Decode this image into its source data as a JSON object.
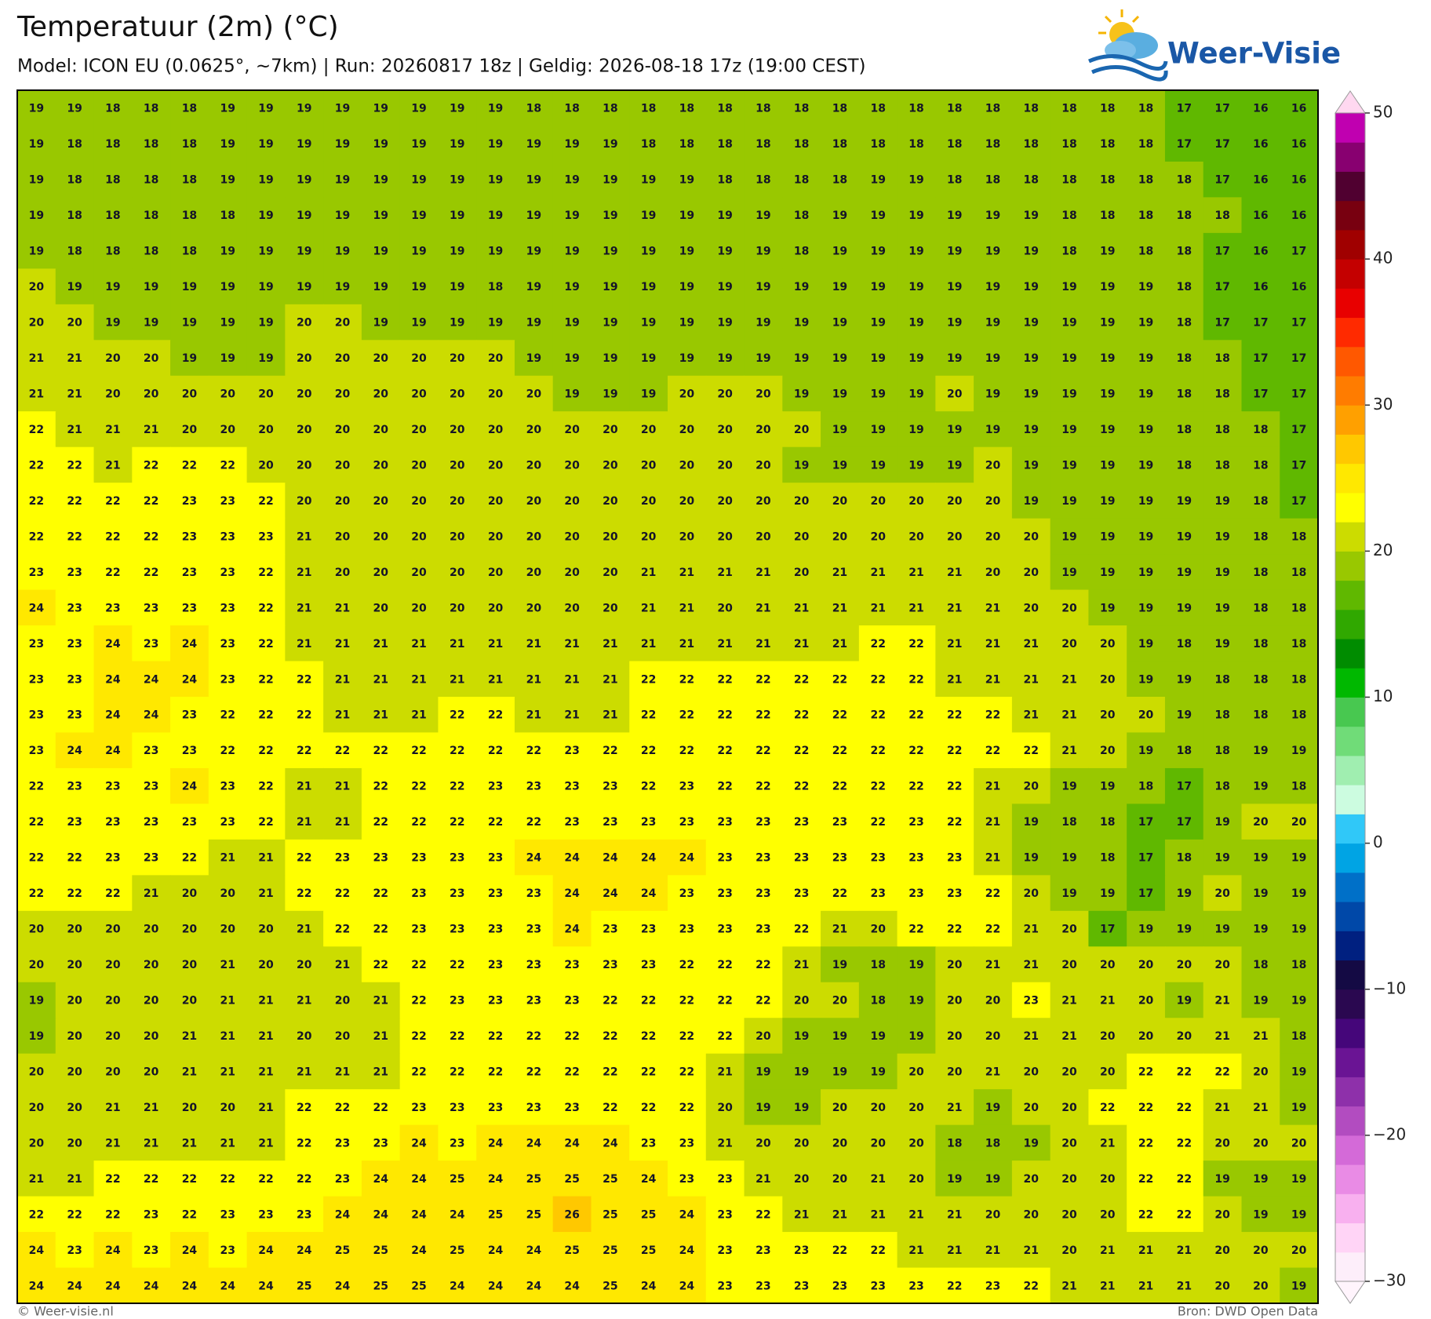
{
  "title": "Temperatuur (2m) (°C)",
  "subtitle": "Model: ICON EU (0.0625°, ~7km)  |  Run: 20260817 18z  |  Geldig: 2026-08-18 17z (19:00 CEST)",
  "logo": "Weer-Visie",
  "footer": {
    "left": "© Weer-visie.nl",
    "right": "Bron: DWD Open Data"
  },
  "grid": {
    "rows": [
      [
        19,
        19,
        18,
        18,
        18,
        19,
        19,
        19,
        19,
        19,
        19,
        19,
        19,
        18,
        18,
        18,
        18,
        18,
        18,
        18,
        18,
        18,
        18,
        18,
        18,
        18,
        18,
        18,
        18,
        18,
        17,
        17,
        16,
        16
      ],
      [
        19,
        18,
        18,
        18,
        18,
        19,
        19,
        19,
        19,
        19,
        19,
        19,
        19,
        19,
        19,
        19,
        18,
        18,
        18,
        18,
        18,
        18,
        18,
        18,
        18,
        18,
        18,
        18,
        18,
        18,
        17,
        17,
        16,
        16
      ],
      [
        19,
        18,
        18,
        18,
        18,
        19,
        19,
        19,
        19,
        19,
        19,
        19,
        19,
        19,
        19,
        19,
        19,
        19,
        18,
        18,
        18,
        18,
        19,
        19,
        18,
        18,
        18,
        18,
        18,
        18,
        18,
        17,
        16,
        16
      ],
      [
        19,
        18,
        18,
        18,
        18,
        18,
        19,
        19,
        19,
        19,
        19,
        19,
        19,
        19,
        19,
        19,
        19,
        19,
        19,
        19,
        18,
        19,
        19,
        19,
        19,
        19,
        19,
        18,
        18,
        18,
        18,
        18,
        16,
        16
      ],
      [
        19,
        18,
        18,
        18,
        18,
        19,
        19,
        19,
        19,
        19,
        19,
        19,
        19,
        19,
        19,
        19,
        19,
        19,
        19,
        19,
        18,
        19,
        19,
        19,
        19,
        19,
        19,
        18,
        19,
        18,
        18,
        17,
        16,
        17
      ],
      [
        20,
        19,
        19,
        19,
        19,
        19,
        19,
        19,
        19,
        19,
        19,
        19,
        18,
        19,
        19,
        19,
        19,
        19,
        19,
        19,
        19,
        19,
        19,
        19,
        19,
        19,
        19,
        19,
        19,
        19,
        18,
        17,
        16,
        16
      ],
      [
        20,
        20,
        19,
        19,
        19,
        19,
        19,
        20,
        20,
        19,
        19,
        19,
        19,
        19,
        19,
        19,
        19,
        19,
        19,
        19,
        19,
        19,
        19,
        19,
        19,
        19,
        19,
        19,
        19,
        19,
        18,
        17,
        17,
        17
      ],
      [
        21,
        21,
        20,
        20,
        19,
        19,
        19,
        20,
        20,
        20,
        20,
        20,
        20,
        19,
        19,
        19,
        19,
        19,
        19,
        19,
        19,
        19,
        19,
        19,
        19,
        19,
        19,
        19,
        19,
        19,
        18,
        18,
        17,
        17
      ],
      [
        21,
        21,
        20,
        20,
        20,
        20,
        20,
        20,
        20,
        20,
        20,
        20,
        20,
        20,
        19,
        19,
        19,
        20,
        20,
        20,
        19,
        19,
        19,
        19,
        20,
        19,
        19,
        19,
        19,
        19,
        18,
        18,
        17,
        17
      ],
      [
        22,
        21,
        21,
        21,
        20,
        20,
        20,
        20,
        20,
        20,
        20,
        20,
        20,
        20,
        20,
        20,
        20,
        20,
        20,
        20,
        20,
        19,
        19,
        19,
        19,
        19,
        19,
        19,
        19,
        19,
        18,
        18,
        18,
        17
      ],
      [
        22,
        22,
        21,
        22,
        22,
        22,
        20,
        20,
        20,
        20,
        20,
        20,
        20,
        20,
        20,
        20,
        20,
        20,
        20,
        20,
        19,
        19,
        19,
        19,
        19,
        20,
        19,
        19,
        19,
        19,
        18,
        18,
        18,
        17
      ],
      [
        22,
        22,
        22,
        22,
        23,
        23,
        22,
        20,
        20,
        20,
        20,
        20,
        20,
        20,
        20,
        20,
        20,
        20,
        20,
        20,
        20,
        20,
        20,
        20,
        20,
        20,
        19,
        19,
        19,
        19,
        19,
        19,
        18,
        17
      ],
      [
        22,
        22,
        22,
        22,
        23,
        23,
        23,
        21,
        20,
        20,
        20,
        20,
        20,
        20,
        20,
        20,
        20,
        20,
        20,
        20,
        20,
        20,
        20,
        20,
        20,
        20,
        20,
        19,
        19,
        19,
        19,
        19,
        18,
        18
      ],
      [
        23,
        23,
        22,
        22,
        23,
        23,
        22,
        21,
        20,
        20,
        20,
        20,
        20,
        20,
        20,
        20,
        21,
        21,
        21,
        21,
        20,
        21,
        21,
        21,
        21,
        20,
        20,
        19,
        19,
        19,
        19,
        19,
        18,
        18
      ],
      [
        24,
        23,
        23,
        23,
        23,
        23,
        22,
        21,
        21,
        20,
        20,
        20,
        20,
        20,
        20,
        20,
        21,
        21,
        20,
        21,
        21,
        21,
        21,
        21,
        21,
        21,
        20,
        20,
        19,
        19,
        19,
        19,
        18,
        18
      ],
      [
        23,
        23,
        24,
        23,
        24,
        23,
        22,
        21,
        21,
        21,
        21,
        21,
        21,
        21,
        21,
        21,
        21,
        21,
        21,
        21,
        21,
        21,
        22,
        22,
        21,
        21,
        21,
        20,
        20,
        19,
        18,
        19,
        18,
        18
      ],
      [
        23,
        23,
        24,
        24,
        24,
        23,
        22,
        22,
        21,
        21,
        21,
        21,
        21,
        21,
        21,
        21,
        22,
        22,
        22,
        22,
        22,
        22,
        22,
        22,
        21,
        21,
        21,
        21,
        20,
        19,
        19,
        18,
        18,
        18
      ],
      [
        23,
        23,
        24,
        24,
        23,
        22,
        22,
        22,
        21,
        21,
        21,
        22,
        22,
        21,
        21,
        21,
        22,
        22,
        22,
        22,
        22,
        22,
        22,
        22,
        22,
        22,
        21,
        21,
        20,
        20,
        19,
        18,
        18,
        18
      ],
      [
        23,
        24,
        24,
        23,
        23,
        22,
        22,
        22,
        22,
        22,
        22,
        22,
        22,
        22,
        23,
        22,
        22,
        22,
        22,
        22,
        22,
        22,
        22,
        22,
        22,
        22,
        22,
        21,
        20,
        19,
        18,
        18,
        19,
        19
      ],
      [
        22,
        23,
        23,
        23,
        24,
        23,
        22,
        21,
        21,
        22,
        22,
        22,
        23,
        23,
        23,
        23,
        22,
        23,
        22,
        22,
        22,
        22,
        22,
        22,
        22,
        21,
        20,
        19,
        19,
        18,
        17,
        18,
        19,
        18
      ],
      [
        22,
        23,
        23,
        23,
        23,
        23,
        22,
        21,
        21,
        22,
        22,
        22,
        22,
        22,
        23,
        23,
        23,
        23,
        23,
        23,
        23,
        23,
        22,
        23,
        22,
        21,
        19,
        18,
        18,
        17,
        17,
        19,
        20,
        20
      ],
      [
        22,
        22,
        23,
        23,
        22,
        21,
        21,
        22,
        23,
        23,
        23,
        23,
        23,
        24,
        24,
        24,
        24,
        24,
        23,
        23,
        23,
        23,
        23,
        23,
        23,
        21,
        19,
        19,
        18,
        17,
        18,
        19,
        19,
        19
      ],
      [
        22,
        22,
        22,
        21,
        20,
        20,
        21,
        22,
        22,
        22,
        23,
        23,
        23,
        23,
        24,
        24,
        24,
        23,
        23,
        23,
        23,
        22,
        23,
        23,
        23,
        22,
        20,
        19,
        19,
        17,
        19,
        20,
        19,
        19
      ],
      [
        20,
        20,
        20,
        20,
        20,
        20,
        20,
        21,
        22,
        22,
        23,
        23,
        23,
        23,
        24,
        23,
        23,
        23,
        23,
        23,
        22,
        21,
        20,
        22,
        22,
        22,
        21,
        20,
        17,
        19,
        19,
        19,
        19,
        19
      ],
      [
        20,
        20,
        20,
        20,
        20,
        21,
        20,
        20,
        21,
        22,
        22,
        22,
        23,
        23,
        23,
        23,
        23,
        22,
        22,
        22,
        21,
        19,
        18,
        19,
        20,
        21,
        21,
        20,
        20,
        20,
        20,
        20,
        18,
        18
      ],
      [
        19,
        20,
        20,
        20,
        20,
        21,
        21,
        21,
        20,
        21,
        22,
        23,
        23,
        23,
        23,
        22,
        22,
        22,
        22,
        22,
        20,
        20,
        18,
        19,
        20,
        20,
        23,
        21,
        21,
        20,
        19,
        21,
        19,
        19
      ],
      [
        19,
        20,
        20,
        20,
        21,
        21,
        21,
        20,
        20,
        21,
        22,
        22,
        22,
        22,
        22,
        22,
        22,
        22,
        22,
        20,
        19,
        19,
        19,
        19,
        20,
        20,
        21,
        21,
        20,
        20,
        20,
        21,
        21,
        18
      ],
      [
        20,
        20,
        20,
        20,
        21,
        21,
        21,
        21,
        21,
        21,
        22,
        22,
        22,
        22,
        22,
        22,
        22,
        22,
        21,
        19,
        19,
        19,
        19,
        20,
        20,
        21,
        20,
        20,
        20,
        22,
        22,
        22,
        20,
        19
      ],
      [
        20,
        20,
        21,
        21,
        20,
        20,
        21,
        22,
        22,
        22,
        23,
        23,
        23,
        23,
        23,
        22,
        22,
        22,
        20,
        19,
        19,
        20,
        20,
        20,
        21,
        19,
        20,
        20,
        22,
        22,
        22,
        21,
        21,
        19
      ],
      [
        20,
        20,
        21,
        21,
        21,
        21,
        21,
        22,
        23,
        23,
        24,
        23,
        24,
        24,
        24,
        24,
        23,
        23,
        21,
        20,
        20,
        20,
        20,
        20,
        18,
        18,
        19,
        20,
        21,
        22,
        22,
        20,
        20,
        20
      ],
      [
        21,
        21,
        22,
        22,
        22,
        22,
        22,
        22,
        23,
        24,
        24,
        25,
        24,
        25,
        25,
        25,
        24,
        23,
        23,
        21,
        20,
        20,
        21,
        20,
        19,
        19,
        20,
        20,
        20,
        22,
        22,
        19,
        19,
        19
      ],
      [
        22,
        22,
        22,
        23,
        22,
        23,
        23,
        23,
        24,
        24,
        24,
        24,
        25,
        25,
        26,
        25,
        25,
        24,
        23,
        22,
        21,
        21,
        21,
        21,
        21,
        20,
        20,
        20,
        20,
        22,
        22,
        20,
        19,
        19
      ],
      [
        24,
        23,
        24,
        23,
        24,
        23,
        24,
        24,
        25,
        25,
        24,
        25,
        24,
        24,
        25,
        25,
        25,
        24,
        23,
        23,
        23,
        22,
        22,
        21,
        21,
        21,
        21,
        20,
        21,
        21,
        21,
        20,
        20,
        20
      ],
      [
        24,
        24,
        24,
        24,
        24,
        24,
        24,
        25,
        24,
        25,
        25,
        24,
        24,
        24,
        24,
        25,
        24,
        24,
        23,
        23,
        23,
        23,
        23,
        23,
        22,
        23,
        22,
        21,
        21,
        21,
        21,
        20,
        20,
        19
      ]
    ]
  },
  "colorbar": {
    "lim": [
      -30,
      50
    ],
    "ticks": [
      50,
      40,
      30,
      20,
      10,
      0,
      {
        "value": -10,
        "label": "−10"
      },
      {
        "value": -20,
        "label": "−20"
      },
      {
        "value": -30,
        "label": "−30"
      }
    ],
    "colors": [
      "#fdeefa",
      "#ffd4f6",
      "#f8b0ef",
      "#e98be5",
      "#d46ad8",
      "#b24cc0",
      "#8e30aa",
      "#6a1494",
      "#45067a",
      "#2a0850",
      "#140a44",
      "#002080",
      "#0048a8",
      "#0070c8",
      "#00a4e4",
      "#30c8f8",
      "#ccfce0",
      "#a0eeb0",
      "#70dc78",
      "#48c850",
      "#00b800",
      "#008c00",
      "#30a800",
      "#60b800",
      "#99c800",
      "#ccdc00",
      "#ffff00",
      "#ffe800",
      "#ffc800",
      "#ffa000",
      "#ff7c00",
      "#ff5800",
      "#ff2a00",
      "#e80000",
      "#c40000",
      "#a00000",
      "#780010",
      "#500030",
      "#880070",
      "#c000b0"
    ],
    "over_color": "#ffd8f0",
    "under_color": "#fff4fc"
  }
}
